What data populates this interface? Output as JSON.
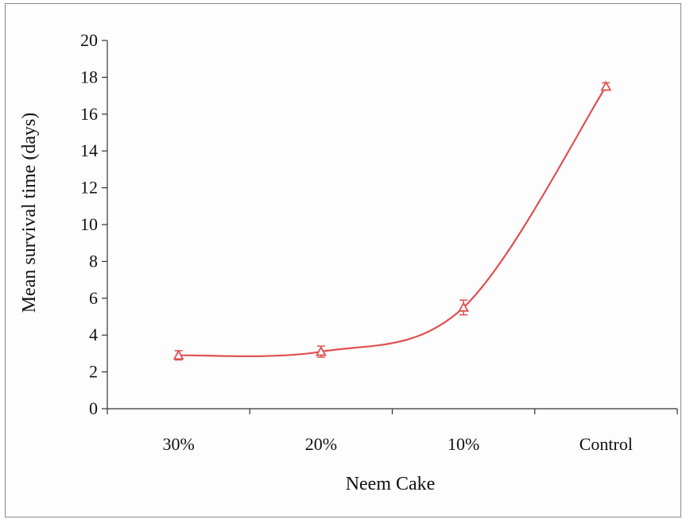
{
  "chart_data": {
    "type": "line",
    "categories": [
      "30%",
      "20%",
      "10%",
      "Control"
    ],
    "series": [
      {
        "values": [
          2.9,
          3.1,
          5.5,
          17.5
        ],
        "error": [
          0.25,
          0.3,
          0.4,
          0.2
        ],
        "marker": "triangle-open",
        "color": "#e05050"
      }
    ],
    "xlabel": "Neem Cake",
    "ylabel": "Mean survival time (days)",
    "ylim": [
      0,
      20
    ],
    "yticks": [
      0,
      2,
      4,
      6,
      8,
      10,
      12,
      14,
      16,
      18,
      20
    ],
    "grid": false,
    "smooth": true
  }
}
